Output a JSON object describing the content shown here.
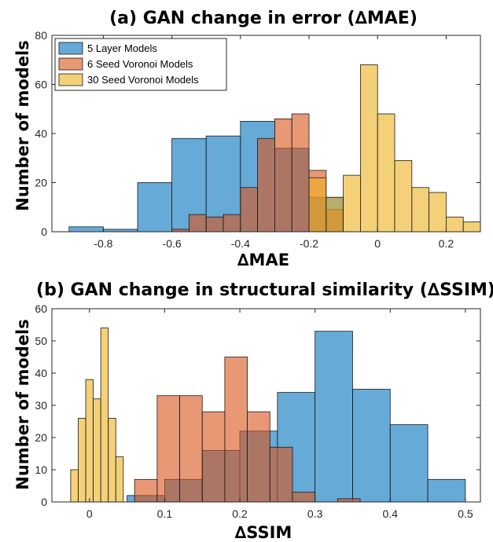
{
  "chart_data": [
    {
      "type": "bar",
      "title": "(a) GAN change in error (∆MAE)",
      "xlabel": "∆MAE",
      "ylabel": "Number of models",
      "xlim": [
        -0.95,
        0.3
      ],
      "ylim": [
        0,
        80
      ],
      "xticks": [
        -0.8,
        -0.6,
        -0.4,
        -0.2,
        0,
        0.2
      ],
      "xtick_labels": [
        "-0.8",
        "-0.6",
        "-0.4",
        "-0.2",
        "0",
        "0.2"
      ],
      "yticks": [
        0,
        20,
        40,
        60,
        80
      ],
      "legend_position": "top-left",
      "series": [
        {
          "name": "5 Layer Models",
          "color": "#0072BD",
          "bins": [
            {
              "x0": -0.9,
              "x1": -0.8,
              "count": 2
            },
            {
              "x0": -0.8,
              "x1": -0.7,
              "count": 1
            },
            {
              "x0": -0.7,
              "x1": -0.6,
              "count": 20
            },
            {
              "x0": -0.6,
              "x1": -0.5,
              "count": 38
            },
            {
              "x0": -0.5,
              "x1": -0.4,
              "count": 39
            },
            {
              "x0": -0.4,
              "x1": -0.3,
              "count": 45
            },
            {
              "x0": -0.3,
              "x1": -0.2,
              "count": 34
            },
            {
              "x0": -0.2,
              "x1": -0.1,
              "count": 14
            }
          ]
        },
        {
          "name": "6 Seed Voronoi Models",
          "color": "#D95319",
          "bins": [
            {
              "x0": -0.6,
              "x1": -0.55,
              "count": 1
            },
            {
              "x0": -0.55,
              "x1": -0.5,
              "count": 7
            },
            {
              "x0": -0.5,
              "x1": -0.45,
              "count": 6
            },
            {
              "x0": -0.45,
              "x1": -0.4,
              "count": 7
            },
            {
              "x0": -0.4,
              "x1": -0.35,
              "count": 18
            },
            {
              "x0": -0.35,
              "x1": -0.3,
              "count": 38
            },
            {
              "x0": -0.3,
              "x1": -0.25,
              "count": 46
            },
            {
              "x0": -0.25,
              "x1": -0.2,
              "count": 48
            },
            {
              "x0": -0.2,
              "x1": -0.15,
              "count": 25
            },
            {
              "x0": -0.15,
              "x1": -0.1,
              "count": 9
            }
          ]
        },
        {
          "name": "30 Seed Voronoi Models",
          "color": "#EDB120",
          "bins": [
            {
              "x0": -0.2,
              "x1": -0.15,
              "count": 22
            },
            {
              "x0": -0.15,
              "x1": -0.1,
              "count": 14
            },
            {
              "x0": -0.1,
              "x1": -0.05,
              "count": 23
            },
            {
              "x0": -0.05,
              "x1": 0.0,
              "count": 68
            },
            {
              "x0": 0.0,
              "x1": 0.05,
              "count": 48
            },
            {
              "x0": 0.05,
              "x1": 0.1,
              "count": 29
            },
            {
              "x0": 0.1,
              "x1": 0.15,
              "count": 18
            },
            {
              "x0": 0.15,
              "x1": 0.2,
              "count": 16
            },
            {
              "x0": 0.2,
              "x1": 0.25,
              "count": 6
            },
            {
              "x0": 0.25,
              "x1": 0.3,
              "count": 4
            }
          ]
        }
      ]
    },
    {
      "type": "bar",
      "title": "(b) GAN change in structural similarity (∆SSIM)",
      "xlabel": "∆SSIM",
      "ylabel": "Number of models",
      "xlim": [
        -0.05,
        0.52
      ],
      "ylim": [
        0,
        60
      ],
      "xticks": [
        0,
        0.1,
        0.2,
        0.3,
        0.4,
        0.5
      ],
      "xtick_labels": [
        "0",
        "0.1",
        "0.2",
        "0.3",
        "0.4",
        "0.5"
      ],
      "yticks": [
        0,
        10,
        20,
        30,
        40,
        50,
        60
      ],
      "series": [
        {
          "name": "5 Layer Models",
          "color": "#0072BD",
          "bins": [
            {
              "x0": 0.05,
              "x1": 0.1,
              "count": 2
            },
            {
              "x0": 0.1,
              "x1": 0.15,
              "count": 7
            },
            {
              "x0": 0.15,
              "x1": 0.2,
              "count": 16
            },
            {
              "x0": 0.2,
              "x1": 0.25,
              "count": 22
            },
            {
              "x0": 0.25,
              "x1": 0.3,
              "count": 34
            },
            {
              "x0": 0.3,
              "x1": 0.35,
              "count": 53
            },
            {
              "x0": 0.35,
              "x1": 0.4,
              "count": 35
            },
            {
              "x0": 0.4,
              "x1": 0.45,
              "count": 24
            },
            {
              "x0": 0.45,
              "x1": 0.5,
              "count": 7
            }
          ]
        },
        {
          "name": "6 Seed Voronoi Models",
          "color": "#D95319",
          "bins": [
            {
              "x0": 0.06,
              "x1": 0.09,
              "count": 7
            },
            {
              "x0": 0.09,
              "x1": 0.12,
              "count": 33
            },
            {
              "x0": 0.12,
              "x1": 0.15,
              "count": 33
            },
            {
              "x0": 0.15,
              "x1": 0.18,
              "count": 28
            },
            {
              "x0": 0.18,
              "x1": 0.21,
              "count": 45
            },
            {
              "x0": 0.21,
              "x1": 0.24,
              "count": 28
            },
            {
              "x0": 0.24,
              "x1": 0.27,
              "count": 17
            },
            {
              "x0": 0.27,
              "x1": 0.3,
              "count": 3
            },
            {
              "x0": 0.3,
              "x1": 0.33,
              "count": 0
            },
            {
              "x0": 0.33,
              "x1": 0.36,
              "count": 1
            }
          ]
        },
        {
          "name": "30 Seed Voronoi Models",
          "color": "#EDB120",
          "bins": [
            {
              "x0": -0.025,
              "x1": -0.015,
              "count": 10
            },
            {
              "x0": -0.015,
              "x1": -0.005,
              "count": 26
            },
            {
              "x0": -0.005,
              "x1": 0.005,
              "count": 38
            },
            {
              "x0": 0.005,
              "x1": 0.015,
              "count": 32
            },
            {
              "x0": 0.015,
              "x1": 0.025,
              "count": 54
            },
            {
              "x0": 0.025,
              "x1": 0.035,
              "count": 26
            },
            {
              "x0": 0.035,
              "x1": 0.045,
              "count": 14
            }
          ]
        }
      ]
    }
  ]
}
